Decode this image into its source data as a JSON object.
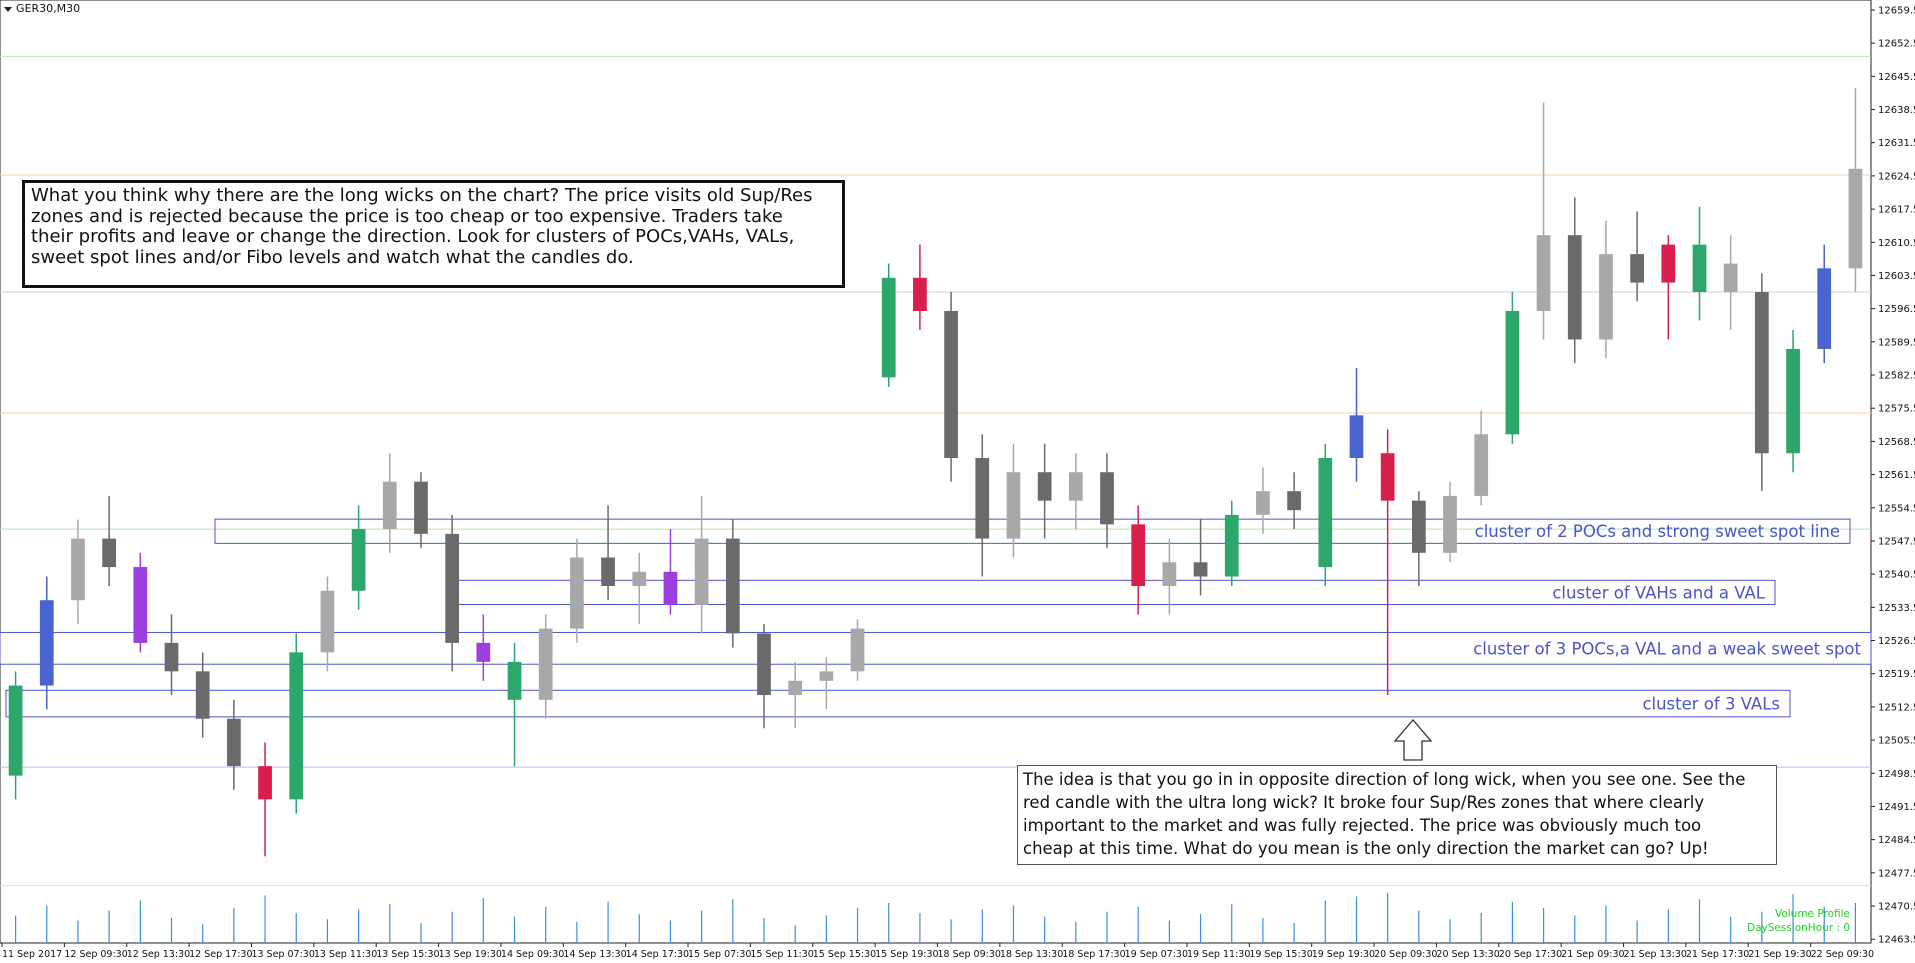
{
  "chart_data": {
    "type": "candlestick",
    "title": "GER30,M30",
    "categories": [
      "11 Sep 2017",
      null,
      "12 Sep 09:30",
      null,
      "12 Sep 13:30",
      null,
      "12 Sep 17:30",
      null,
      "13 Sep 07:30",
      null,
      "13 Sep 11:30",
      null,
      "13 Sep 15:30",
      null,
      "13 Sep 19:30",
      null,
      "14 Sep 09:30",
      null,
      "14 Sep 13:30",
      null,
      "14 Sep 17:30",
      null,
      "15 Sep 07:30",
      null,
      "15 Sep 11:30",
      null,
      "15 Sep 15:30",
      null,
      "15 Sep 19:30",
      null,
      "18 Sep 09:30",
      null,
      "18 Sep 13:30",
      null,
      "18 Sep 17:30",
      null,
      "19 Sep 07:30",
      null,
      "19 Sep 11:30",
      null,
      "19 Sep 15:30",
      null,
      "19 Sep 19:30",
      null,
      "20 Sep 09:30",
      null,
      "20 Sep 13:30",
      null,
      "20 Sep 17:30",
      null,
      "21 Sep 09:30",
      null,
      "21 Sep 13:30",
      null,
      "21 Sep 17:30",
      null,
      "21 Sep 19:30",
      null,
      "22 Sep 09:30",
      null
    ],
    "open": [
      12498,
      12517,
      12535,
      12548,
      12542,
      12526,
      12520,
      12510,
      12500,
      12493,
      12524,
      12537,
      12550,
      12560,
      12549,
      12526,
      12522,
      12514,
      12529,
      12544,
      12538,
      12541,
      12534,
      12548,
      12528,
      12515,
      12518,
      12520,
      12582,
      12603,
      12596,
      12565,
      12548,
      12562,
      12556,
      12562,
      12551,
      12538,
      12543,
      12540,
      12553,
      12558,
      12542,
      12565,
      12566,
      12556,
      12545,
      12557,
      12570,
      12596,
      12612,
      12590,
      12608,
      12602,
      12610,
      12600,
      12600,
      12566,
      12588,
      12605
    ],
    "high": [
      12520,
      12540,
      12552,
      12557,
      12545,
      12532,
      12524,
      12514,
      12505,
      12528,
      12540,
      12555,
      12566,
      12562,
      12553,
      12532,
      12526,
      12532,
      12548,
      12555,
      12545,
      12550,
      12557,
      12552,
      12530,
      12522,
      12523,
      12531,
      12606,
      12610,
      12600,
      12570,
      12568,
      12568,
      12566,
      12566,
      12555,
      12548,
      12552,
      12556,
      12563,
      12562,
      12568,
      12584,
      12571,
      12558,
      12560,
      12575,
      12600,
      12640,
      12620,
      12615,
      12617,
      12612,
      12618,
      12612,
      12604,
      12592,
      12610,
      12643
    ],
    "low": [
      12493,
      12512,
      12530,
      12538,
      12524,
      12515,
      12506,
      12495,
      12481,
      12490,
      12520,
      12533,
      12545,
      12546,
      12520,
      12518,
      12500,
      12510,
      12526,
      12535,
      12530,
      12532,
      12528,
      12525,
      12508,
      12508,
      12512,
      12518,
      12580,
      12592,
      12560,
      12540,
      12544,
      12548,
      12550,
      12546,
      12532,
      12532,
      12536,
      12538,
      12549,
      12550,
      12538,
      12560,
      12515,
      12538,
      12543,
      12555,
      12568,
      12590,
      12585,
      12586,
      12598,
      12590,
      12594,
      12592,
      12558,
      12562,
      12585,
      12600
    ],
    "close": [
      12517,
      12535,
      12548,
      12542,
      12526,
      12520,
      12510,
      12500,
      12493,
      12524,
      12537,
      12550,
      12560,
      12549,
      12526,
      12522,
      12514,
      12529,
      12544,
      12538,
      12541,
      12534,
      12548,
      12528,
      12515,
      12518,
      12520,
      12529,
      12603,
      12596,
      12565,
      12548,
      12562,
      12556,
      12562,
      12551,
      12538,
      12543,
      12540,
      12553,
      12558,
      12554,
      12565,
      12574,
      12556,
      12545,
      12557,
      12570,
      12596,
      12612,
      12590,
      12608,
      12602,
      12610,
      12600,
      12606,
      12566,
      12588,
      12605,
      12626
    ],
    "colors": [
      "#2ca66a",
      "#4a63cf",
      "#a8a8a8",
      "#6a6a6a",
      "#9b3fe0",
      "#6a6a6a",
      "#6a6a6a",
      "#6a6a6a",
      "#d81e4a",
      "#2ca66a",
      "#a8a8a8",
      "#2ca66a",
      "#a8a8a8",
      "#6a6a6a",
      "#6a6a6a",
      "#9b3fe0",
      "#2ca66a",
      "#a8a8a8",
      "#a8a8a8",
      "#6a6a6a",
      "#a8a8a8",
      "#9b3fe0",
      "#a8a8a8",
      "#6a6a6a",
      "#6a6a6a",
      "#a8a8a8",
      "#a8a8a8",
      "#a8a8a8",
      "#2ca66a",
      "#d81e4a",
      "#6a6a6a",
      "#6a6a6a",
      "#a8a8a8",
      "#6a6a6a",
      "#a8a8a8",
      "#6a6a6a",
      "#d81e4a",
      "#a8a8a8",
      "#6a6a6a",
      "#2ca66a",
      "#a8a8a8",
      "#6a6a6a",
      "#2ca66a",
      "#4a63cf",
      "#d81e4a",
      "#6a6a6a",
      "#a8a8a8",
      "#a8a8a8",
      "#2ca66a",
      "#a8a8a8",
      "#6a6a6a",
      "#a8a8a8",
      "#6a6a6a",
      "#d81e4a",
      "#2ca66a",
      "#a8a8a8",
      "#6a6a6a",
      "#2ca66a",
      "#4a63cf",
      "#a8a8a8"
    ],
    "volume": [
      22,
      30,
      18,
      26,
      34,
      20,
      15,
      28,
      38,
      24,
      19,
      27,
      31,
      16,
      25,
      36,
      21,
      29,
      17,
      33,
      23,
      18,
      26,
      35,
      20,
      14,
      22,
      28,
      32,
      24,
      19,
      27,
      30,
      21,
      17,
      25,
      29,
      18,
      23,
      31,
      20,
      16,
      34,
      37,
      40,
      26,
      19,
      24,
      33,
      28,
      22,
      30,
      18,
      27,
      35,
      21,
      25,
      39,
      29,
      32
    ],
    "volume_color": "#3a8de0",
    "ylim": [
      12462.7,
      12661.6
    ],
    "yticks": [
      12463.5,
      12470.5,
      12477.5,
      12484.5,
      12491.5,
      12498.5,
      12505.5,
      12512.5,
      12519.5,
      12526.5,
      12533.5,
      12540.5,
      12547.5,
      12554.5,
      12561.5,
      12568.5,
      12575.5,
      12582.5,
      12589.5,
      12596.5,
      12603.5,
      12610.5,
      12617.5,
      12624.5,
      12631.5,
      12638.5,
      12645.5,
      12652.5,
      12659.5
    ],
    "hlines": [
      {
        "value": 12649.7,
        "color": "#b8e2b8"
      },
      {
        "value": 12624.7,
        "color": "#efd2b4"
      },
      {
        "value": 12600.0,
        "color": "#cfcfcf"
      },
      {
        "value": 12574.5,
        "color": "#efd2b4"
      },
      {
        "value": 12550.0,
        "color": "#b8e2b8"
      },
      {
        "value": 12499.8,
        "color": "#b3bbf2"
      },
      {
        "value": 12474.8,
        "color": "#e6d8c0"
      }
    ],
    "zones": [
      {
        "label": "cluster of 2 POCs and strong sweet spot line",
        "range": [
          12547.0,
          12552.1
        ],
        "color": "#4a55c8"
      },
      {
        "label": "cluster of VAHs and a VAL",
        "range": [
          12534.1,
          12539.2
        ],
        "color": "#4a55c8"
      },
      {
        "label": "cluster of 3 POCs,a VAL and a weak sweet spot",
        "range": [
          12521.5,
          12528.2
        ],
        "color": "#4a55c8"
      },
      {
        "label": "cluster of 3 VALs",
        "range": [
          12510.4,
          12516.0
        ],
        "color": "#4a55c8"
      }
    ],
    "indicator_labels": [
      "Volume Profile",
      "DaySessionHour : 0"
    ],
    "notes": [
      [
        "What you think why there are the long wicks on the chart? The price visits old Sup/Res",
        "zones and is rejected because the price is too cheap or too expensive. Traders take",
        "their profits and leave or change the direction. Look for clusters of POCs,VAHs, VALs,",
        "sweet spot lines and/or Fibo levels and watch what the candles do."
      ],
      [
        "The idea is that you go in in opposite direction of long wick, when you see one. See the",
        "red candle with the ultra long wick? It broke four Sup/Res zones that where clearly",
        "important to the market and was fully rejected. The price was obviously much too",
        "cheap at this time. What do you mean is the only direction the market can go?    Up!"
      ]
    ]
  }
}
